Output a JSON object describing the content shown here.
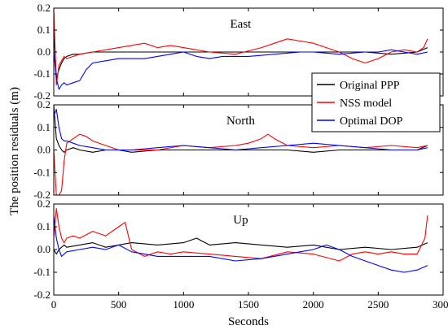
{
  "chart_data": {
    "type": "line",
    "xlabel": "Seconds",
    "ylabel": "The position residuals (m)",
    "xlim": [
      0,
      3000
    ],
    "xticks": [
      0,
      500,
      1000,
      1500,
      2000,
      2500,
      3000
    ],
    "ylim": [
      -0.2,
      0.2
    ],
    "yticks": [
      -0.2,
      -0.1,
      0.0,
      0.1,
      0.2
    ],
    "ytick_labels": [
      "-0.2",
      "-0.1",
      "0.0",
      "0.1",
      "0.2"
    ],
    "grid": false,
    "legend": {
      "placement": "right",
      "entries": [
        {
          "name": "Original PPP",
          "color": "#000000"
        },
        {
          "name": "NSS model",
          "color": "#ff0000"
        },
        {
          "name": "Optimal DOP",
          "color": "#0000ff"
        }
      ]
    },
    "panels": [
      {
        "title": "East",
        "series": [
          {
            "name": "Original PPP",
            "color": "#000000",
            "x": [
              0,
              20,
              40,
              60,
              80,
              100,
              150,
              200,
              300,
              400,
              500,
              600,
              800,
              1000,
              1200,
              1500,
              1800,
              2000,
              2200,
              2400,
              2600,
              2800,
              2880
            ],
            "y": [
              0.1,
              -0.12,
              -0.08,
              -0.05,
              -0.03,
              -0.02,
              -0.01,
              -0.01,
              0.0,
              0.0,
              0.0,
              0.0,
              0.0,
              0.0,
              0.0,
              0.0,
              0.0,
              0.0,
              0.0,
              0.0,
              -0.01,
              0.0,
              0.02
            ]
          },
          {
            "name": "NSS model",
            "color": "#ff0000",
            "x": [
              0,
              20,
              40,
              60,
              80,
              100,
              150,
              200,
              300,
              400,
              500,
              600,
              700,
              800,
              900,
              1000,
              1200,
              1400,
              1600,
              1700,
              1800,
              1900,
              2000,
              2100,
              2200,
              2300,
              2400,
              2500,
              2600,
              2700,
              2800,
              2850,
              2880
            ],
            "y": [
              0.2,
              -0.15,
              -0.06,
              -0.04,
              -0.02,
              -0.03,
              -0.02,
              -0.01,
              0.0,
              0.01,
              0.02,
              0.03,
              0.04,
              0.02,
              0.03,
              0.02,
              0.0,
              -0.01,
              0.02,
              0.04,
              0.06,
              0.05,
              0.04,
              0.02,
              0.0,
              -0.03,
              -0.05,
              -0.03,
              0.0,
              0.01,
              0.0,
              0.02,
              0.06
            ]
          },
          {
            "name": "Optimal DOP",
            "color": "#0000ff",
            "x": [
              0,
              20,
              40,
              60,
              80,
              100,
              150,
              200,
              250,
              300,
              400,
              500,
              600,
              700,
              800,
              900,
              1000,
              1100,
              1200,
              1300,
              1500,
              1700,
              1900,
              2000,
              2200,
              2400,
              2500,
              2600,
              2700,
              2800,
              2880
            ],
            "y": [
              0.0,
              -0.12,
              -0.17,
              -0.15,
              -0.14,
              -0.15,
              -0.14,
              -0.13,
              -0.08,
              -0.05,
              -0.04,
              -0.03,
              -0.03,
              -0.03,
              -0.02,
              -0.01,
              0.0,
              -0.02,
              -0.03,
              -0.02,
              -0.02,
              -0.01,
              0.0,
              0.0,
              -0.01,
              0.0,
              0.0,
              0.01,
              0.0,
              -0.01,
              0.0
            ]
          }
        ]
      },
      {
        "title": "North",
        "series": [
          {
            "name": "Original PPP",
            "color": "#000000",
            "x": [
              0,
              20,
              40,
              60,
              80,
              100,
              150,
              200,
              300,
              400,
              500,
              600,
              800,
              1000,
              1200,
              1500,
              1800,
              2000,
              2200,
              2400,
              2600,
              2800,
              2880
            ],
            "y": [
              0.2,
              0.05,
              0.02,
              0.0,
              -0.01,
              0.0,
              0.01,
              0.0,
              -0.01,
              0.0,
              0.0,
              -0.01,
              0.0,
              0.0,
              0.0,
              0.0,
              0.0,
              -0.01,
              0.0,
              0.0,
              0.0,
              0.0,
              0.02
            ]
          },
          {
            "name": "NSS model",
            "color": "#ff0000",
            "x": [
              0,
              20,
              40,
              60,
              80,
              100,
              150,
              200,
              250,
              300,
              400,
              500,
              600,
              800,
              1000,
              1200,
              1400,
              1500,
              1600,
              1650,
              1700,
              1800,
              2000,
              2200,
              2400,
              2600,
              2800,
              2880
            ],
            "y": [
              0.0,
              -0.2,
              -0.2,
              -0.18,
              -0.05,
              0.03,
              0.05,
              0.07,
              0.06,
              0.04,
              0.02,
              0.0,
              0.0,
              0.0,
              0.02,
              0.01,
              0.02,
              0.03,
              0.05,
              0.07,
              0.05,
              0.02,
              0.01,
              0.02,
              0.01,
              0.02,
              0.01,
              0.02
            ]
          },
          {
            "name": "Optimal DOP",
            "color": "#0000ff",
            "x": [
              0,
              20,
              40,
              60,
              80,
              100,
              150,
              200,
              300,
              400,
              500,
              600,
              800,
              1000,
              1200,
              1400,
              1600,
              1800,
              2000,
              2200,
              2400,
              2600,
              2800,
              2880
            ],
            "y": [
              0.15,
              0.18,
              0.1,
              0.05,
              0.04,
              0.04,
              0.03,
              0.02,
              0.01,
              0.0,
              0.0,
              0.0,
              0.01,
              0.02,
              0.01,
              0.0,
              0.01,
              0.02,
              0.03,
              0.02,
              0.01,
              0.0,
              0.0,
              0.01
            ]
          }
        ]
      },
      {
        "title": "Up",
        "series": [
          {
            "name": "Original PPP",
            "color": "#000000",
            "x": [
              0,
              20,
              40,
              60,
              80,
              100,
              200,
              300,
              400,
              500,
              600,
              800,
              1000,
              1100,
              1200,
              1400,
              1600,
              1800,
              2000,
              2200,
              2400,
              2600,
              2800,
              2880
            ],
            "y": [
              0.0,
              -0.02,
              0.0,
              0.01,
              0.02,
              0.01,
              0.02,
              0.03,
              0.01,
              0.02,
              0.03,
              0.02,
              0.03,
              0.05,
              0.02,
              0.03,
              0.02,
              0.01,
              0.02,
              0.0,
              0.01,
              0.0,
              0.01,
              0.03
            ]
          },
          {
            "name": "NSS model",
            "color": "#ff0000",
            "x": [
              0,
              20,
              40,
              60,
              80,
              100,
              150,
              200,
              300,
              400,
              500,
              550,
              600,
              700,
              800,
              900,
              1000,
              1200,
              1400,
              1600,
              1800,
              2000,
              2200,
              2300,
              2400,
              2500,
              2600,
              2700,
              2800,
              2860,
              2880
            ],
            "y": [
              0.05,
              0.18,
              0.1,
              0.05,
              0.03,
              0.05,
              0.06,
              0.05,
              0.08,
              0.06,
              0.1,
              0.12,
              0.0,
              -0.03,
              -0.01,
              -0.02,
              -0.01,
              -0.02,
              -0.03,
              -0.04,
              -0.01,
              -0.02,
              -0.05,
              -0.02,
              -0.01,
              -0.02,
              -0.01,
              -0.02,
              -0.02,
              0.05,
              0.15
            ]
          },
          {
            "name": "Optimal DOP",
            "color": "#0000ff",
            "x": [
              0,
              20,
              40,
              60,
              80,
              100,
              200,
              300,
              400,
              500,
              600,
              700,
              800,
              1000,
              1200,
              1400,
              1600,
              1800,
              2000,
              2100,
              2200,
              2300,
              2400,
              2500,
              2600,
              2700,
              2800,
              2880
            ],
            "y": [
              0.15,
              0.05,
              0.0,
              -0.03,
              -0.02,
              -0.01,
              0.0,
              0.01,
              0.0,
              0.02,
              -0.01,
              -0.02,
              -0.03,
              -0.03,
              -0.03,
              -0.05,
              -0.04,
              -0.02,
              0.0,
              0.02,
              0.0,
              -0.03,
              -0.05,
              -0.07,
              -0.09,
              -0.1,
              -0.09,
              -0.07
            ]
          }
        ]
      }
    ]
  }
}
